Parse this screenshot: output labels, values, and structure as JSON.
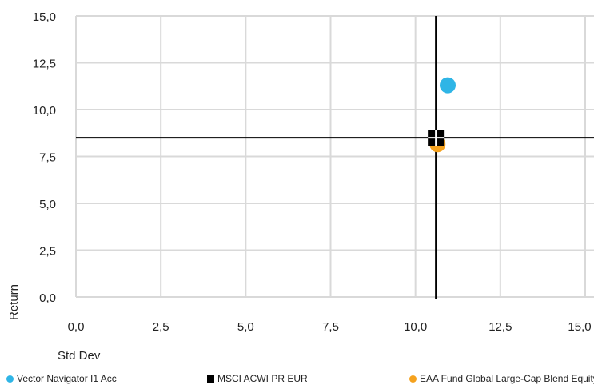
{
  "chart_data": {
    "type": "scatter",
    "xlabel": "Std Dev",
    "ylabel": "Return",
    "xlim": [
      0,
      15
    ],
    "ylim": [
      0,
      15
    ],
    "x_ticks": [
      "0,0",
      "2,5",
      "5,0",
      "7,5",
      "10,0",
      "12,5",
      "15,0"
    ],
    "y_ticks": [
      "0,0",
      "2,5",
      "5,0",
      "7,5",
      "10,0",
      "12,5",
      "15,0"
    ],
    "grid": true,
    "legend_position": "bottom",
    "reference_lines": {
      "x": 10.6,
      "y": 8.5,
      "color": "#000000"
    },
    "series": [
      {
        "name": "Vector Navigator I1 Acc",
        "marker": "circle",
        "color": "#2fb5e6",
        "points": [
          {
            "x": 10.95,
            "y": 11.3
          }
        ]
      },
      {
        "name": "MSCI ACWI PR EUR",
        "marker": "square",
        "color": "#000000",
        "points": [
          {
            "x": 10.6,
            "y": 8.5
          }
        ]
      },
      {
        "name": "EAA Fund Global Large-Cap Blend Equity",
        "marker": "circle",
        "color": "#f5a21e",
        "points": [
          {
            "x": 10.65,
            "y": 8.15
          }
        ]
      }
    ]
  }
}
